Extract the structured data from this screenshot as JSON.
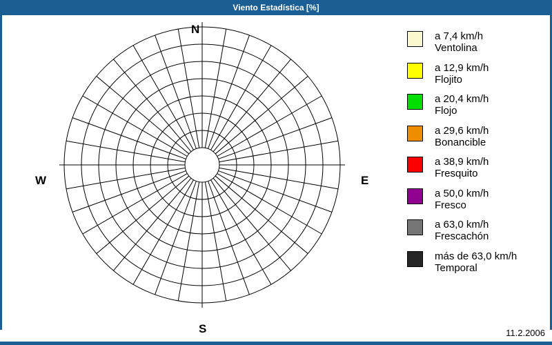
{
  "window": {
    "title": "Viento Estadística [%]",
    "titlebar_color": "#1b5e93",
    "border_color": "#1b5e93"
  },
  "footer": {
    "date": "11.2.2006"
  },
  "chart_data": {
    "type": "wind-rose-polar-grid",
    "title": "Viento Estadística [%]",
    "units": "%",
    "direction_labels": [
      "N",
      "E",
      "S",
      "W"
    ],
    "grid": {
      "rings": 8,
      "spokes": 36,
      "inner_hole_ratio": 0.125,
      "grid_color": "#000000",
      "background": "#ffffff"
    },
    "series": [],
    "legend_position": "right",
    "legend": [
      {
        "speed": "a 7,4 km/h",
        "name": "Ventolina",
        "color": "#faf7cf"
      },
      {
        "speed": "a 12,9 km/h",
        "name": "Flojito",
        "color": "#ffff00"
      },
      {
        "speed": "a 20,4 km/h",
        "name": "Flojo",
        "color": "#00df00"
      },
      {
        "speed": "a 29,6 km/h",
        "name": "Bonancible",
        "color": "#f08c00"
      },
      {
        "speed": "a 38,9 km/h",
        "name": "Fresquito",
        "color": "#fa0000"
      },
      {
        "speed": "a 50,0 km/h",
        "name": "Fresco",
        "color": "#910091"
      },
      {
        "speed": "a 63,0 km/h",
        "name": "Frescachón",
        "color": "#757575"
      },
      {
        "speed": "más de 63,0 km/h",
        "name": "Temporal",
        "color": "#262626"
      }
    ]
  }
}
